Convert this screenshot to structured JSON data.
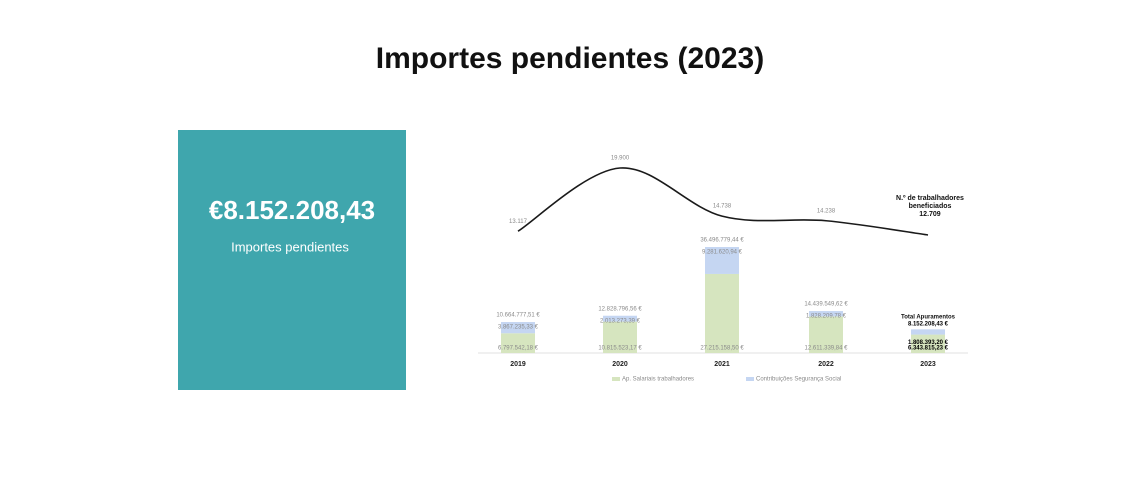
{
  "header": {
    "title": "Importes pendientes (2023)"
  },
  "card": {
    "value": "€8.152.208,43",
    "label": "Importes pendientes"
  },
  "chart_data": {
    "type": "bar",
    "stacked": true,
    "categories": [
      "2019",
      "2020",
      "2021",
      "2022",
      "2023"
    ],
    "series": [
      {
        "name": "Ap. Salariais trabalhadores",
        "color": "#d6e5bf",
        "values": [
          6797542.18,
          10815523.17,
          27215158.5,
          12611339.84,
          6343815.23
        ],
        "value_labels": [
          "6.797.542,18 €",
          "10.815.523,17 €",
          "27.215.158,50 €",
          "12.611.339,84 €",
          "6.343.815,23 €"
        ]
      },
      {
        "name": "Contribuições Segurança Social",
        "color": "#c5d6f2",
        "values": [
          3867235.33,
          2013273.39,
          9281620.94,
          1828209.78,
          1808393.2
        ],
        "value_labels": [
          "3.867.235,33 €",
          "2.013.273,39 €",
          "9.281.620,94 €",
          "1.828.209,78 €",
          "1.808.393,20 €"
        ]
      }
    ],
    "totals": [
      10664777.51,
      12828796.56,
      36496779.44,
      14439549.62,
      8152208.43
    ],
    "total_labels": [
      "10.664.777,51 €",
      "12.828.796,56 €",
      "36.496.779,44 €",
      "14.439.549,62 €",
      "8.152.208,43 €"
    ],
    "total_title": "Total Apuramentos",
    "line": {
      "name": "N.º de trabalhadores beneficiados",
      "color": "#1a1a1a",
      "values": [
        13117,
        19900,
        14738,
        14238,
        12709
      ],
      "value_labels": [
        "13.117",
        "19.900",
        "14.738",
        "14.238",
        "12.709"
      ]
    }
  }
}
